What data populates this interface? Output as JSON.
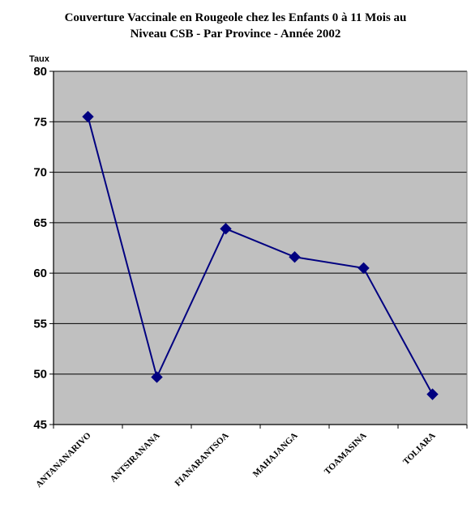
{
  "chart_data": {
    "type": "line",
    "title_lines": [
      "Couverture Vaccinale en Rougeole chez les Enfants 0 à 11 Mois au",
      "Niveau CSB -  Par Province - Année 2002"
    ],
    "ylabel": "Taux",
    "xlabel": "",
    "categories": [
      "ANTANANARIVO",
      "ANTSIRANANA",
      "FIANARANTSOA",
      "MAHAJANGA",
      "TOAMASINA",
      "TOLIARA"
    ],
    "series": [
      {
        "values": [
          75.5,
          49.7,
          64.4,
          61.6,
          60.5,
          48.0
        ]
      }
    ],
    "ylim": [
      45,
      80
    ],
    "yticks": [
      45,
      50,
      55,
      60,
      65,
      70,
      75,
      80
    ],
    "grid": true,
    "legend": "none",
    "colors": {
      "plot_background": "#c0c0c0",
      "line": "#000080",
      "marker": "#000080",
      "gridline": "#000000"
    }
  }
}
